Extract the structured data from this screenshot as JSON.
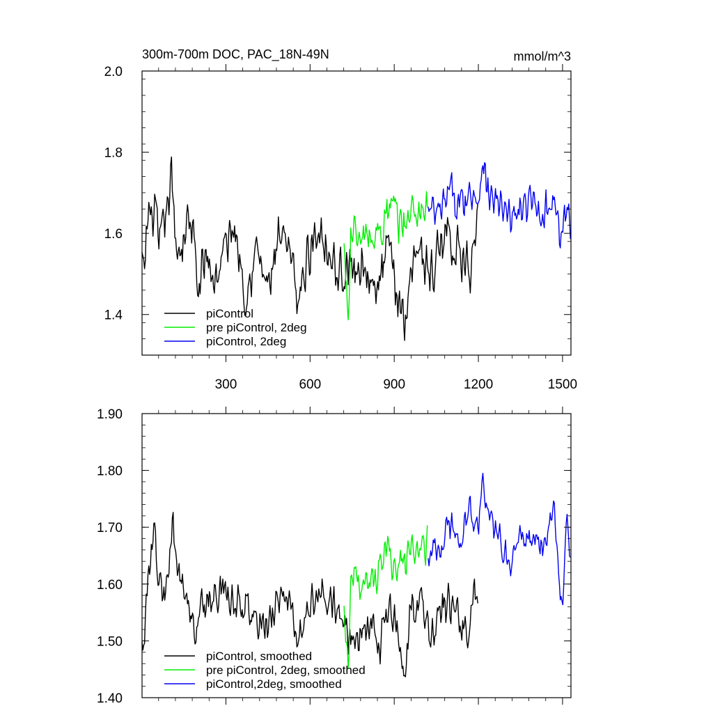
{
  "colors": {
    "black": "#000000",
    "green": "#00ee00",
    "blue": "#0000ee",
    "background": "#ffffff"
  },
  "chart_data": [
    {
      "type": "line",
      "title": "300m-700m DOC, PAC_18N-49N",
      "units": "mmol/m^3",
      "xlim": [
        1,
        1530
      ],
      "ylim": [
        1.3,
        2.0
      ],
      "y_ticks": [
        1.4,
        1.6,
        1.8,
        2.0
      ],
      "y_tick_labels": [
        "1.4",
        "1.6",
        "1.8",
        "2.0"
      ],
      "x_ticks": [
        300,
        600,
        900,
        1200,
        1500
      ],
      "x_tick_labels": [
        "300",
        "600",
        "900",
        "1200",
        "1500"
      ],
      "legend_position": "bottom-left",
      "series": [
        {
          "name": "piControl",
          "color": "#000000",
          "x_range": [
            1,
            1200
          ],
          "keypoints": [
            [
              1,
              1.54
            ],
            [
              8,
              1.47
            ],
            [
              15,
              1.58
            ],
            [
              25,
              1.66
            ],
            [
              35,
              1.62
            ],
            [
              45,
              1.68
            ],
            [
              60,
              1.55
            ],
            [
              75,
              1.6
            ],
            [
              90,
              1.66
            ],
            [
              105,
              1.74
            ],
            [
              120,
              1.58
            ],
            [
              140,
              1.56
            ],
            [
              160,
              1.63
            ],
            [
              180,
              1.62
            ],
            [
              200,
              1.45
            ],
            [
              230,
              1.55
            ],
            [
              260,
              1.48
            ],
            [
              290,
              1.55
            ],
            [
              330,
              1.62
            ],
            [
              370,
              1.46
            ],
            [
              410,
              1.56
            ],
            [
              450,
              1.46
            ],
            [
              490,
              1.58
            ],
            [
              530,
              1.54
            ],
            [
              560,
              1.43
            ],
            [
              600,
              1.57
            ],
            [
              640,
              1.62
            ],
            [
              670,
              1.55
            ],
            [
              700,
              1.5
            ],
            [
              730,
              1.52
            ],
            [
              760,
              1.5
            ],
            [
              790,
              1.54
            ],
            [
              830,
              1.43
            ],
            [
              860,
              1.52
            ],
            [
              880,
              1.56
            ],
            [
              900,
              1.47
            ],
            [
              920,
              1.44
            ],
            [
              940,
              1.38
            ],
            [
              970,
              1.58
            ],
            [
              1000,
              1.54
            ],
            [
              1040,
              1.5
            ],
            [
              1080,
              1.62
            ],
            [
              1120,
              1.56
            ],
            [
              1160,
              1.52
            ],
            [
              1180,
              1.5
            ],
            [
              1200,
              1.62
            ]
          ],
          "amplitude": 0.075
        },
        {
          "name": "pre piControl, 2deg",
          "color": "#00ee00",
          "x_range": [
            721,
            1020
          ],
          "keypoints": [
            [
              721,
              1.56
            ],
            [
              735,
              1.4
            ],
            [
              745,
              1.58
            ],
            [
              760,
              1.62
            ],
            [
              780,
              1.56
            ],
            [
              800,
              1.6
            ],
            [
              830,
              1.58
            ],
            [
              860,
              1.63
            ],
            [
              890,
              1.66
            ],
            [
              920,
              1.62
            ],
            [
              950,
              1.64
            ],
            [
              980,
              1.66
            ],
            [
              1000,
              1.66
            ],
            [
              1020,
              1.67
            ]
          ],
          "amplitude": 0.07
        },
        {
          "name": "piControl, 2deg",
          "color": "#0000ee",
          "x_range": [
            1021,
            1530
          ],
          "keypoints": [
            [
              1021,
              1.65
            ],
            [
              1060,
              1.64
            ],
            [
              1100,
              1.7
            ],
            [
              1140,
              1.67
            ],
            [
              1180,
              1.71
            ],
            [
              1200,
              1.68
            ],
            [
              1215,
              1.8
            ],
            [
              1230,
              1.7
            ],
            [
              1270,
              1.67
            ],
            [
              1310,
              1.63
            ],
            [
              1350,
              1.66
            ],
            [
              1400,
              1.67
            ],
            [
              1440,
              1.65
            ],
            [
              1470,
              1.7
            ],
            [
              1490,
              1.58
            ],
            [
              1510,
              1.65
            ],
            [
              1530,
              1.62
            ]
          ],
          "amplitude": 0.06
        }
      ],
      "legend": [
        "piControl",
        "pre piControl, 2deg",
        "piControl, 2deg"
      ]
    },
    {
      "type": "line",
      "title": "",
      "xlim": [
        1,
        1530
      ],
      "ylim": [
        1.4,
        1.9
      ],
      "y_ticks": [
        1.4,
        1.5,
        1.6,
        1.7,
        1.8,
        1.9
      ],
      "y_tick_labels": [
        "1.40",
        "1.50",
        "1.60",
        "1.70",
        "1.80",
        "1.90"
      ],
      "x_ticks": [
        300,
        600,
        900,
        1200,
        1500
      ],
      "x_tick_labels": [],
      "legend_position": "bottom-left",
      "series": [
        {
          "name": "piControl, smoothed",
          "color": "#000000",
          "x_range": [
            1,
            1200
          ],
          "keypoints": [
            [
              1,
              1.52
            ],
            [
              8,
              1.48
            ],
            [
              20,
              1.6
            ],
            [
              30,
              1.66
            ],
            [
              45,
              1.68
            ],
            [
              60,
              1.6
            ],
            [
              80,
              1.57
            ],
            [
              100,
              1.64
            ],
            [
              110,
              1.7
            ],
            [
              130,
              1.62
            ],
            [
              150,
              1.6
            ],
            [
              170,
              1.55
            ],
            [
              190,
              1.52
            ],
            [
              210,
              1.56
            ],
            [
              250,
              1.58
            ],
            [
              290,
              1.6
            ],
            [
              330,
              1.55
            ],
            [
              370,
              1.58
            ],
            [
              410,
              1.54
            ],
            [
              450,
              1.52
            ],
            [
              490,
              1.58
            ],
            [
              530,
              1.56
            ],
            [
              560,
              1.5
            ],
            [
              600,
              1.56
            ],
            [
              640,
              1.6
            ],
            [
              680,
              1.56
            ],
            [
              700,
              1.54
            ],
            [
              730,
              1.52
            ],
            [
              770,
              1.5
            ],
            [
              810,
              1.54
            ],
            [
              850,
              1.5
            ],
            [
              880,
              1.55
            ],
            [
              910,
              1.52
            ],
            [
              935,
              1.42
            ],
            [
              960,
              1.56
            ],
            [
              1000,
              1.55
            ],
            [
              1040,
              1.5
            ],
            [
              1080,
              1.58
            ],
            [
              1120,
              1.55
            ],
            [
              1160,
              1.52
            ],
            [
              1180,
              1.56
            ],
            [
              1200,
              1.61
            ]
          ],
          "amplitude": 0.045
        },
        {
          "name": "pre piControl, 2deg, smoothed",
          "color": "#00ee00",
          "x_range": [
            721,
            1020
          ],
          "keypoints": [
            [
              721,
              1.58
            ],
            [
              735,
              1.45
            ],
            [
              745,
              1.6
            ],
            [
              760,
              1.63
            ],
            [
              780,
              1.58
            ],
            [
              800,
              1.6
            ],
            [
              830,
              1.6
            ],
            [
              860,
              1.66
            ],
            [
              880,
              1.68
            ],
            [
              900,
              1.62
            ],
            [
              930,
              1.64
            ],
            [
              960,
              1.66
            ],
            [
              990,
              1.65
            ],
            [
              1020,
              1.67
            ]
          ],
          "amplitude": 0.04
        },
        {
          "name": "piControl,2deg, smoothed",
          "color": "#0000ee",
          "x_range": [
            1021,
            1530
          ],
          "keypoints": [
            [
              1021,
              1.66
            ],
            [
              1060,
              1.66
            ],
            [
              1100,
              1.7
            ],
            [
              1140,
              1.68
            ],
            [
              1170,
              1.74
            ],
            [
              1190,
              1.7
            ],
            [
              1200,
              1.68
            ],
            [
              1215,
              1.82
            ],
            [
              1230,
              1.72
            ],
            [
              1270,
              1.68
            ],
            [
              1310,
              1.64
            ],
            [
              1350,
              1.68
            ],
            [
              1400,
              1.68
            ],
            [
              1440,
              1.66
            ],
            [
              1470,
              1.74
            ],
            [
              1490,
              1.6
            ],
            [
              1500,
              1.55
            ],
            [
              1515,
              1.7
            ],
            [
              1530,
              1.64
            ]
          ],
          "amplitude": 0.035
        }
      ],
      "legend": [
        "piControl, smoothed",
        "pre piControl, 2deg, smoothed",
        "piControl,2deg, smoothed"
      ]
    }
  ]
}
